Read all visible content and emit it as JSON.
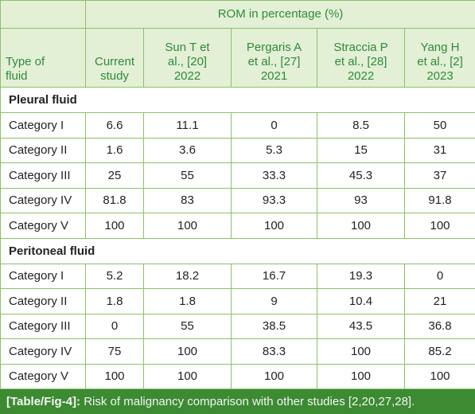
{
  "table": {
    "group_header": "ROM in percentage (%)",
    "columns": [
      "Type of\nfluid",
      "Current\nstudy",
      "Sun T et\nal., [20]\n2022",
      "Pergaris A\net al., [27]\n2021",
      "Straccia P\net al., [28]\n2022",
      "Yang H\net al., [2]\n2023"
    ],
    "sections": [
      {
        "title": "Pleural fluid",
        "rows": [
          [
            "Category I",
            6.6,
            11.1,
            0,
            8.5,
            50
          ],
          [
            "Category II",
            1.6,
            3.6,
            5.3,
            15,
            31
          ],
          [
            "Category III",
            25,
            55,
            33.3,
            45.3,
            37
          ],
          [
            "Category IV",
            81.8,
            83,
            93.3,
            93,
            91.8
          ],
          [
            "Category V",
            100,
            100,
            100,
            100,
            100
          ]
        ]
      },
      {
        "title": "Peritoneal fluid",
        "rows": [
          [
            "Category I",
            5.2,
            18.2,
            16.7,
            19.3,
            0
          ],
          [
            "Category II",
            1.8,
            1.8,
            9,
            10.4,
            21
          ],
          [
            "Category III",
            0,
            55,
            38.5,
            43.5,
            36.8
          ],
          [
            "Category IV",
            75,
            100,
            83.3,
            100,
            85.2
          ],
          [
            "Category V",
            100,
            100,
            100,
            100,
            100
          ]
        ]
      }
    ],
    "caption": {
      "label": "[Table/Fig-4]:",
      "text": "Risk of malignancy comparison with other studies [2,20,27,28]."
    }
  }
}
